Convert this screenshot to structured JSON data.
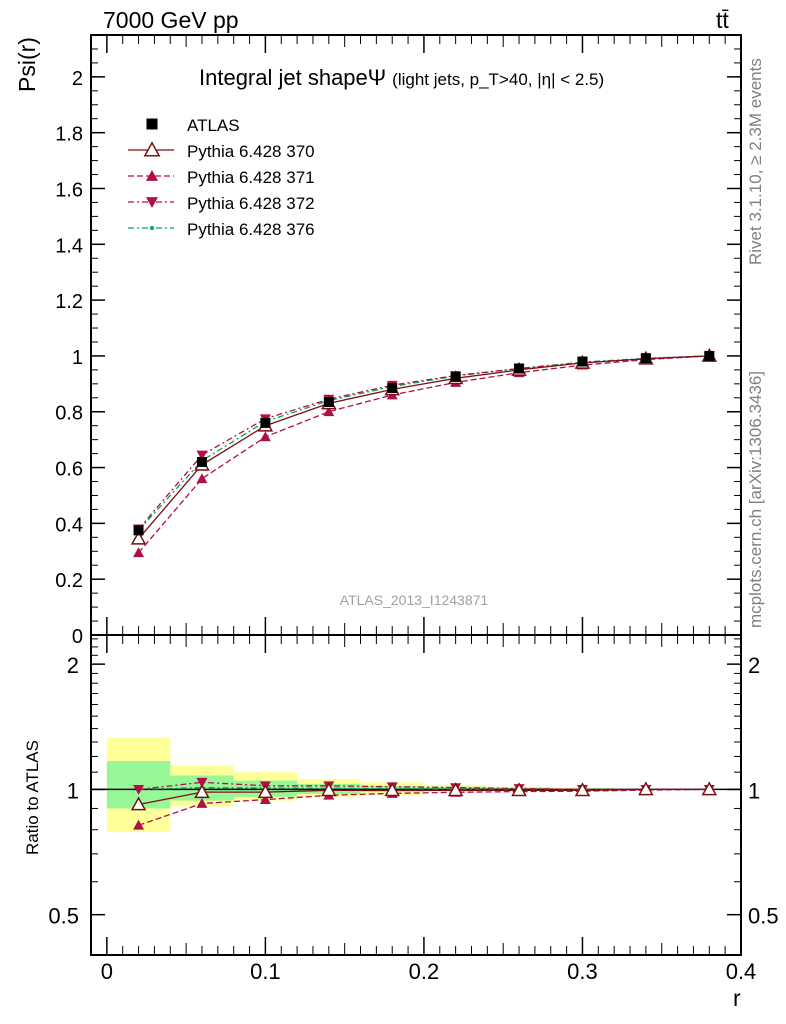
{
  "header": {
    "energy_label": "7000 GeV pp",
    "process_label": "tt̄"
  },
  "side_labels": {
    "rivet": "Rivet 3.1.10, ≥ 2.3M events",
    "mcplots": "mcplots.cern.ch [arXiv:1306.3436]"
  },
  "watermark": "ATLAS_2013_I1243871",
  "chart_data": [
    {
      "type": "line",
      "title": "Integral jet shapeΨ",
      "subtitle": "(light jets, p_T>40, |η| < 2.5)",
      "xlabel": "r",
      "ylabel": "Psi(r)",
      "xlim": [
        -0.01,
        0.4
      ],
      "ylim": [
        0,
        2.15
      ],
      "x_ticks": [
        "0",
        "0.1",
        "0.2",
        "0.3",
        "0.4"
      ],
      "y_ticks": [
        "0",
        "0.2",
        "0.4",
        "0.6",
        "0.8",
        "1",
        "1.2",
        "1.4",
        "1.6",
        "1.8",
        "2"
      ],
      "legend_position": "top-left",
      "x": [
        0.02,
        0.06,
        0.1,
        0.14,
        0.18,
        0.22,
        0.26,
        0.3,
        0.34,
        0.38
      ],
      "series": [
        {
          "name": "ATLAS",
          "color": "#000000",
          "marker": "square",
          "values": [
            0.375,
            0.62,
            0.76,
            0.835,
            0.885,
            0.925,
            0.955,
            0.98,
            0.992,
            1.0
          ]
        },
        {
          "name": "Pythia 6.428 370",
          "color": "#7a1014",
          "marker": "triangle-up-open",
          "line": "solid",
          "values": [
            0.345,
            0.61,
            0.75,
            0.83,
            0.88,
            0.92,
            0.95,
            0.975,
            0.99,
            1.0
          ]
        },
        {
          "name": "Pythia 6.428 371",
          "color": "#b0104a",
          "marker": "triangle-up",
          "line": "dashed",
          "values": [
            0.295,
            0.56,
            0.71,
            0.8,
            0.86,
            0.905,
            0.94,
            0.967,
            0.987,
            1.0
          ]
        },
        {
          "name": "Pythia 6.428 372",
          "color": "#b0104a",
          "marker": "triangle-down",
          "line": "dashdot",
          "values": [
            0.38,
            0.645,
            0.775,
            0.845,
            0.895,
            0.93,
            0.955,
            0.975,
            0.99,
            1.0
          ]
        },
        {
          "name": "Pythia 6.428 376",
          "color": "#00a060",
          "marker": "dot",
          "line": "dashdot",
          "values": [
            0.375,
            0.625,
            0.765,
            0.84,
            0.89,
            0.928,
            0.955,
            0.978,
            0.991,
            1.0
          ]
        }
      ]
    },
    {
      "type": "line",
      "ylabel": "Ratio to ATLAS",
      "xlabel": "r",
      "scale": "log",
      "xlim": [
        -0.01,
        0.4
      ],
      "ylim": [
        0.4,
        2.35
      ],
      "y_ticks": [
        "0.5",
        "1",
        "2"
      ],
      "x": [
        0.02,
        0.06,
        0.1,
        0.14,
        0.18,
        0.22,
        0.26,
        0.3,
        0.34,
        0.38
      ],
      "bands": {
        "bin_edges": [
          0.0,
          0.04,
          0.08,
          0.12,
          0.16,
          0.2,
          0.24,
          0.28,
          0.32
        ],
        "green": [
          [
            0.9,
            1.17
          ],
          [
            0.94,
            1.08
          ],
          [
            0.96,
            1.05
          ],
          [
            0.975,
            1.03
          ],
          [
            0.985,
            1.02
          ],
          [
            0.99,
            1.015
          ],
          [
            0.993,
            1.01
          ],
          [
            0.995,
            1.005
          ]
        ],
        "yellow": [
          [
            0.79,
            1.33
          ],
          [
            0.91,
            1.14
          ],
          [
            0.94,
            1.1
          ],
          [
            0.96,
            1.06
          ],
          [
            0.97,
            1.04
          ],
          [
            0.985,
            1.025
          ],
          [
            0.99,
            1.015
          ],
          [
            0.993,
            1.01
          ]
        ],
        "colors": {
          "green": "#98f898",
          "yellow": "#ffff99"
        }
      },
      "series": [
        {
          "name": "Pythia 6.428 370",
          "values": [
            0.92,
            0.985,
            0.985,
            0.995,
            0.995,
            0.995,
            0.995,
            0.995,
            1.0,
            1.0
          ]
        },
        {
          "name": "Pythia 6.428 371",
          "values": [
            0.82,
            0.925,
            0.945,
            0.968,
            0.978,
            0.984,
            0.988,
            0.99,
            0.996,
            1.0
          ]
        },
        {
          "name": "Pythia 6.428 372",
          "values": [
            1.0,
            1.04,
            1.02,
            1.02,
            1.015,
            1.01,
            1.005,
            1.0,
            1.0,
            1.0
          ]
        },
        {
          "name": "Pythia 6.428 376",
          "values": [
            1.0,
            1.01,
            1.008,
            1.006,
            1.005,
            1.003,
            1.002,
            1.001,
            1.0,
            1.0
          ]
        }
      ]
    }
  ]
}
